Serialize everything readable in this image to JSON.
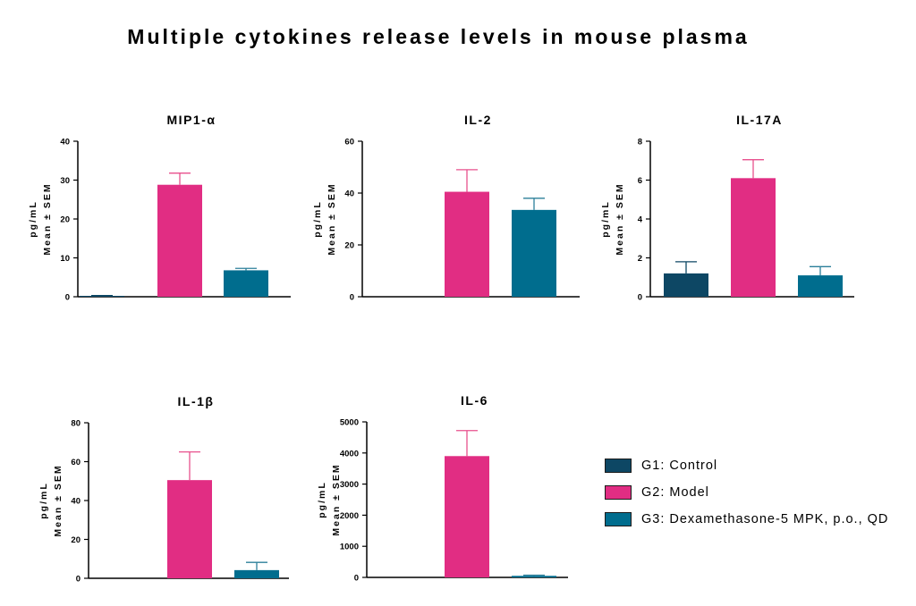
{
  "title": "Multiple cytokines release levels in mouse plasma",
  "colors": {
    "g1": "#0d4764",
    "g2": "#e12d83",
    "g3": "#006d8e",
    "err_g2": "#e8508d",
    "err_g3": "#2b7f9a"
  },
  "legend": [
    {
      "label": "G1: Control",
      "color": "#0d4764"
    },
    {
      "label": "G2: Model",
      "color": "#e12d83"
    },
    {
      "label": "G3: Dexamethasone-5 MPK, p.o., QD",
      "color": "#006d8e"
    }
  ],
  "chart_data": [
    {
      "type": "bar",
      "title": "MIP1-α",
      "ylabel": [
        "pg/mL",
        "Mean ± SEM"
      ],
      "categories": [
        "G1: Control",
        "G2: Model",
        "G3: Dexamethasone-5 MPK, p.o., QD"
      ],
      "values": [
        0.2,
        28.8,
        6.8
      ],
      "errors": [
        0.1,
        3.0,
        0.5
      ],
      "ylim": [
        0,
        40
      ],
      "yticks": [
        "0",
        "10",
        "20",
        "30",
        "40"
      ]
    },
    {
      "type": "bar",
      "title": "IL-2",
      "ylabel": [
        "pg/mL",
        "Mean ± SEM"
      ],
      "categories": [
        "G1: Control",
        "G2: Model",
        "G3: Dexamethasone-5 MPK, p.o., QD"
      ],
      "values": [
        0,
        40.5,
        33.5
      ],
      "errors": [
        0,
        8.5,
        4.5
      ],
      "ylim": [
        0,
        60
      ],
      "yticks": [
        "0",
        "20",
        "40",
        "60"
      ]
    },
    {
      "type": "bar",
      "title": "IL-17A",
      "ylabel": [
        "pg/mL",
        "Mean ± SEM"
      ],
      "categories": [
        "G1: Control",
        "G2: Model",
        "G3: Dexamethasone-5 MPK, p.o., QD"
      ],
      "values": [
        1.2,
        6.1,
        1.1
      ],
      "errors": [
        0.6,
        0.95,
        0.45
      ],
      "ylim": [
        0,
        8
      ],
      "yticks": [
        "0",
        "2",
        "4",
        "6",
        "8"
      ]
    },
    {
      "type": "bar",
      "title": "IL-1β",
      "ylabel": [
        "pg/mL",
        "Mean ± SEM"
      ],
      "categories": [
        "G1: Control",
        "G2: Model",
        "G3: Dexamethasone-5 MPK, p.o., QD"
      ],
      "values": [
        0,
        50.5,
        4.2
      ],
      "errors": [
        0,
        14.5,
        4.0
      ],
      "ylim": [
        0,
        80
      ],
      "yticks": [
        "0",
        "20",
        "40",
        "60",
        "80"
      ]
    },
    {
      "type": "bar",
      "title": "IL-6",
      "ylabel": [
        "pg/mL",
        "Mean ± SEM"
      ],
      "categories": [
        "G1: Control",
        "G2: Model",
        "G3: Dexamethasone-5 MPK, p.o., QD"
      ],
      "values": [
        0,
        3900,
        50
      ],
      "errors": [
        0,
        820,
        20
      ],
      "ylim": [
        0,
        5000
      ],
      "yticks": [
        "0",
        "1000",
        "2000",
        "3000",
        "4000",
        "5000"
      ]
    }
  ]
}
